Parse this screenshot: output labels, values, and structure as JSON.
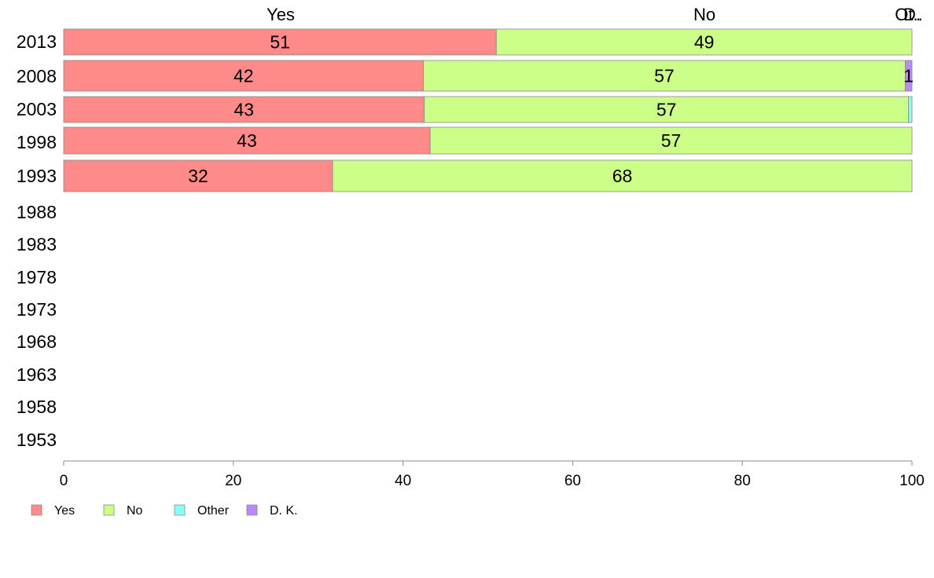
{
  "chart_data": {
    "type": "bar",
    "orientation": "horizontal-stacked",
    "categories": [
      "2013",
      "2008",
      "2003",
      "1998",
      "1993",
      "1988",
      "1983",
      "1978",
      "1973",
      "1968",
      "1963",
      "1958",
      "1953"
    ],
    "series": [
      {
        "name": "Yes",
        "color": "#ff8a8a",
        "values": [
          51,
          42.4,
          42.5,
          43.2,
          31.7,
          null,
          null,
          null,
          null,
          null,
          null,
          null,
          null
        ],
        "labels": [
          "51",
          "42",
          "43",
          "43",
          "32",
          "",
          "",
          "",
          "",
          "",
          "",
          "",
          ""
        ]
      },
      {
        "name": "No",
        "color": "#ccff88",
        "values": [
          49,
          56.8,
          57.1,
          56.8,
          68.3,
          null,
          null,
          null,
          null,
          null,
          null,
          null,
          null
        ],
        "labels": [
          "49",
          "57",
          "57",
          "57",
          "68",
          "",
          "",
          "",
          "",
          "",
          "",
          "",
          ""
        ]
      },
      {
        "name": "Other",
        "color": "#88ffff",
        "values": [
          0,
          0,
          0.4,
          0,
          0,
          null,
          null,
          null,
          null,
          null,
          null,
          null,
          null
        ],
        "labels": [
          "",
          "",
          "",
          "",
          "",
          "",
          "",
          "",
          "",
          "",
          "",
          "",
          ""
        ]
      },
      {
        "name": "D. K.",
        "color": "#bb88ff",
        "values": [
          0,
          0.8,
          0,
          0,
          0,
          null,
          null,
          null,
          null,
          null,
          null,
          null,
          null
        ],
        "labels": [
          "",
          "1",
          "",
          "",
          "",
          "",
          "",
          "",
          "",
          "",
          "",
          "",
          ""
        ]
      }
    ],
    "column_headers": [
      "Yes",
      "No",
      "Ot..",
      "D."
    ],
    "xlim": [
      0,
      100
    ],
    "x_ticks": [
      "0",
      "20",
      "40",
      "60",
      "80",
      "100"
    ],
    "grid": false,
    "legend_position": "bottom-left"
  }
}
